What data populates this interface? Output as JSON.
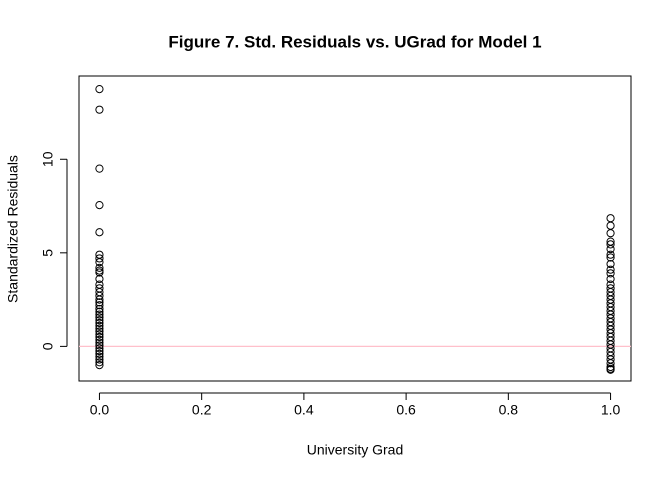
{
  "chart_data": {
    "type": "scatter",
    "title": "Figure 7. Std. Residuals vs. UGrad for Model 1",
    "x_label": "University Grad",
    "y_label": "Standardized Residuals",
    "x": [
      0,
      0,
      0,
      0,
      0,
      0,
      0,
      0,
      0,
      0,
      0,
      0,
      0,
      0,
      0,
      0,
      0,
      0,
      0,
      0,
      0,
      0,
      0,
      0,
      0,
      0,
      0,
      0,
      0,
      0,
      0,
      0,
      0,
      0,
      0,
      0,
      0,
      0,
      0,
      0,
      1,
      1,
      1,
      1,
      1,
      1,
      1,
      1,
      1,
      1,
      1,
      1,
      1,
      1,
      1,
      1,
      1,
      1,
      1,
      1,
      1,
      1,
      1,
      1,
      1,
      1,
      1,
      1,
      1,
      1,
      1,
      1,
      1,
      1,
      1,
      1,
      1
    ],
    "y": [
      13.75,
      12.65,
      9.5,
      7.55,
      6.1,
      4.9,
      4.7,
      4.5,
      4.2,
      4.05,
      3.95,
      3.6,
      3.3,
      3.1,
      2.9,
      2.7,
      2.5,
      2.35,
      2.2,
      2.0,
      1.85,
      1.7,
      1.55,
      1.4,
      1.25,
      1.1,
      0.95,
      0.8,
      0.65,
      0.5,
      0.35,
      0.2,
      0.05,
      -0.1,
      -0.25,
      -0.4,
      -0.55,
      -0.7,
      -0.85,
      -1.0,
      6.85,
      6.45,
      6.05,
      5.6,
      5.45,
      5.2,
      4.9,
      4.75,
      4.4,
      4.1,
      3.9,
      3.6,
      3.3,
      3.1,
      2.9,
      2.7,
      2.5,
      2.3,
      2.1,
      1.9,
      1.7,
      1.5,
      1.3,
      1.1,
      0.9,
      0.7,
      0.5,
      0.3,
      0.1,
      -0.1,
      -0.3,
      -0.5,
      -0.7,
      -0.9,
      -1.1,
      -1.2,
      -1.25
    ],
    "color": "#000000",
    "reference_line": {
      "value": 0,
      "color": "#ffc0cb"
    },
    "xlim": [
      -0.04,
      1.04
    ],
    "ylim": [
      -1.85,
      14.45
    ],
    "xticks": [
      {
        "value": 0,
        "label": "0.0"
      },
      0.2,
      0.4,
      0.6,
      0.8,
      {
        "value": 1,
        "label": "1.0"
      }
    ],
    "yticks": [
      0,
      5,
      10
    ]
  }
}
